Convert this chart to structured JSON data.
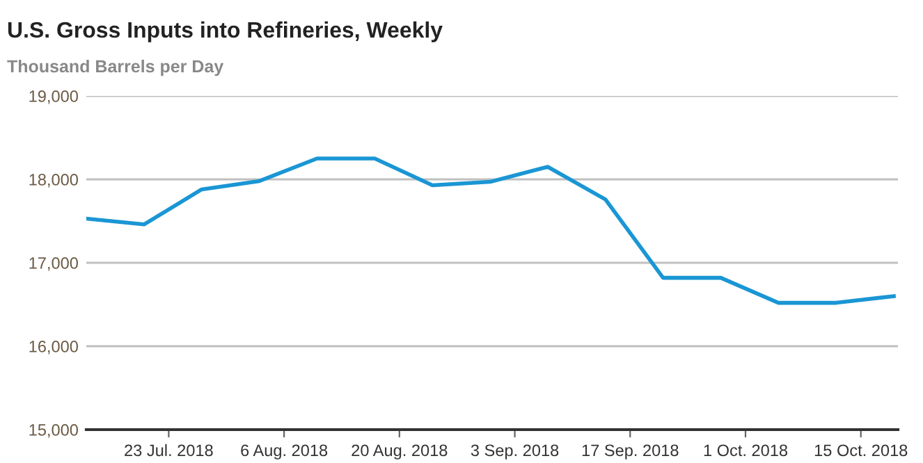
{
  "chart_data": {
    "type": "line",
    "title": "U.S. Gross Inputs into Refineries, Weekly",
    "subtitle": "Thousand Barrels per Day",
    "x": [
      "2018-07-13",
      "2018-07-20",
      "2018-07-27",
      "2018-08-03",
      "2018-08-10",
      "2018-08-17",
      "2018-08-24",
      "2018-08-31",
      "2018-09-07",
      "2018-09-14",
      "2018-09-21",
      "2018-09-28",
      "2018-10-05",
      "2018-10-12",
      "2018-10-19"
    ],
    "series": [
      {
        "color": "#1a96d4",
        "values": [
          17530,
          17460,
          17880,
          17980,
          18250,
          18250,
          17930,
          17970,
          18150,
          17760,
          16820,
          16820,
          16520,
          16520,
          16600
        ]
      }
    ],
    "xlim": [
      "2018-07-13",
      "2018-10-19T12:00"
    ],
    "xticks": [
      {
        "value": "2018-07-23",
        "label": "23 Jul. 2018"
      },
      {
        "value": "2018-08-06",
        "label": "6 Aug. 2018"
      },
      {
        "value": "2018-08-20",
        "label": "20 Aug. 2018"
      },
      {
        "value": "2018-09-03",
        "label": "3 Sep. 2018"
      },
      {
        "value": "2018-09-17",
        "label": "17 Sep. 2018"
      },
      {
        "value": "2018-10-01",
        "label": "1 Oct. 2018"
      },
      {
        "value": "2018-10-15",
        "label": "15 Oct. 2018"
      }
    ],
    "ylim": [
      15000,
      19000
    ],
    "yticks": [
      {
        "value": 15000,
        "label": "15,000"
      },
      {
        "value": 16000,
        "label": "16,000"
      },
      {
        "value": 17000,
        "label": "17,000"
      },
      {
        "value": 18000,
        "label": "18,000"
      },
      {
        "value": 19000,
        "label": "19,000"
      }
    ],
    "grid": "y",
    "marker": "none",
    "line_style": "solid"
  }
}
